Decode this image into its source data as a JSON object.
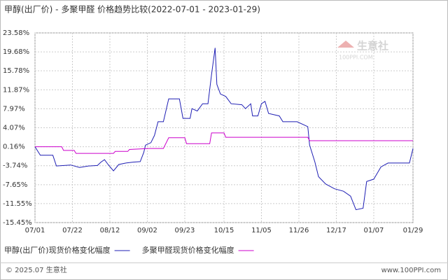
{
  "chart_data": {
    "type": "line",
    "title": "甲醇(出厂价) - 多聚甲醛 价格趋势比较(2022-07-01 - 2023-01-29)",
    "watermark": {
      "text": "生意社",
      "sub": "100PPI.COM"
    },
    "footer": {
      "left": "© 2025.07 生意社",
      "right": "www.100PPI.com"
    },
    "xlim": [
      "07/01",
      "01/29"
    ],
    "xticks": [
      "07/01",
      "07/22",
      "08/12",
      "09/02",
      "09/23",
      "10/15",
      "11/05",
      "11/26",
      "12/17",
      "01/07",
      "01/29"
    ],
    "ylim": [
      -15.45,
      23.58
    ],
    "yticks": [
      {
        "value": 23.58,
        "label": "23.58%"
      },
      {
        "value": 19.68,
        "label": "19.68%"
      },
      {
        "value": 15.78,
        "label": "15.78%"
      },
      {
        "value": 11.87,
        "label": "11.87%"
      },
      {
        "value": 7.97,
        "label": "7.97%"
      },
      {
        "value": 4.07,
        "label": "4.07%"
      },
      {
        "value": 0.16,
        "label": "0.16%"
      },
      {
        "value": -3.74,
        "label": "-3.74%"
      },
      {
        "value": -7.65,
        "label": "-7.65%"
      },
      {
        "value": -11.55,
        "label": "-11.55%"
      },
      {
        "value": -15.45,
        "label": "-15.45%"
      }
    ],
    "grid": true,
    "series": [
      {
        "name": "甲醇(出厂价)现货价格变化幅度",
        "color": "#1f1fb4",
        "x": [
          "07/01",
          "07/04",
          "07/11",
          "07/13",
          "07/21",
          "07/26",
          "07/31",
          "08/05",
          "08/07",
          "08/09",
          "08/11",
          "08/14",
          "08/17",
          "08/21",
          "08/25",
          "08/29",
          "08/31",
          "09/01",
          "09/04",
          "09/06",
          "09/08",
          "09/11",
          "09/14",
          "09/20",
          "09/22",
          "09/26",
          "09/27",
          "09/30",
          "10/03",
          "10/06",
          "10/08",
          "10/10",
          "10/11",
          "10/13",
          "10/16",
          "10/19",
          "10/25",
          "10/27",
          "10/30",
          "10/31",
          "11/03",
          "11/05",
          "11/07",
          "11/09",
          "11/15",
          "11/17",
          "11/25",
          "12/01",
          "12/02",
          "12/05",
          "12/07",
          "12/11",
          "12/16",
          "12/21",
          "12/25",
          "12/28",
          "01/01",
          "01/03",
          "01/07",
          "01/11",
          "01/15",
          "01/27",
          "01/29"
        ],
        "values": [
          0.16,
          -1.6,
          -1.6,
          -3.8,
          -3.6,
          -4.1,
          -3.8,
          -3.7,
          -3.0,
          -2.5,
          -3.5,
          -4.8,
          -3.5,
          -3.2,
          -3.0,
          -2.9,
          -1.0,
          0.5,
          1.0,
          2.5,
          5.3,
          5.3,
          10.0,
          10.0,
          6.0,
          6.0,
          8.0,
          7.5,
          9.0,
          9.0,
          15.0,
          20.5,
          13.0,
          11.0,
          10.5,
          9.0,
          8.8,
          8.0,
          9.0,
          6.5,
          6.5,
          9.0,
          9.5,
          7.0,
          6.5,
          5.3,
          5.3,
          4.3,
          0.5,
          -3.0,
          -6.0,
          -7.5,
          -8.5,
          -9.0,
          -10.0,
          -12.8,
          -12.5,
          -7.0,
          -6.5,
          -4.0,
          -3.2,
          -3.2,
          -0.2
        ]
      },
      {
        "name": "多聚甲醛现货价格变化幅度",
        "color": "#cc00cc",
        "x": [
          "07/01",
          "07/16",
          "07/17",
          "07/23",
          "07/24",
          "08/14",
          "08/15",
          "08/22",
          "08/23",
          "09/03",
          "09/11",
          "09/14",
          "09/23",
          "09/24",
          "10/07",
          "10/08",
          "10/15",
          "10/16",
          "12/01",
          "12/02",
          "01/29"
        ],
        "values": [
          0.16,
          0.16,
          -0.6,
          -0.6,
          -1.2,
          -1.2,
          -0.8,
          -0.8,
          -0.4,
          -0.2,
          -0.2,
          2.0,
          2.0,
          0.8,
          0.8,
          3.0,
          3.0,
          2.1,
          2.1,
          1.4,
          1.4
        ]
      }
    ]
  }
}
